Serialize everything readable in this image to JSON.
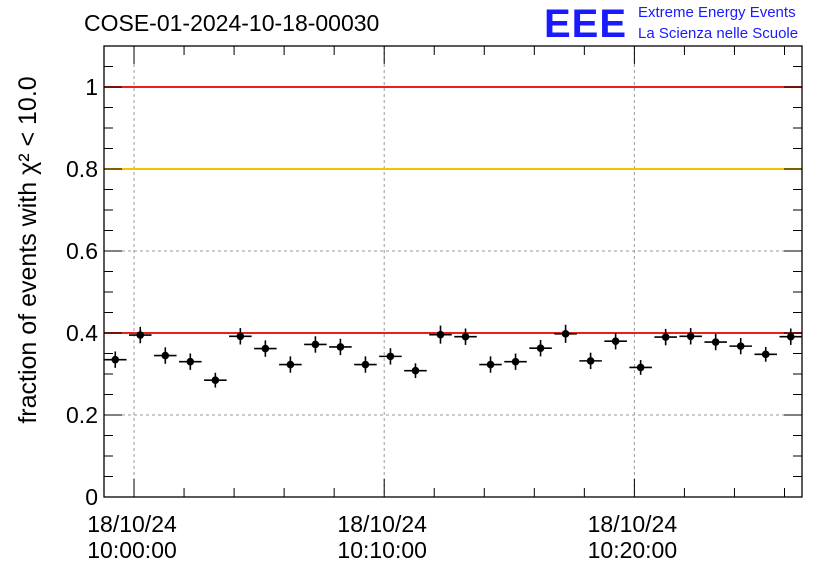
{
  "header": {
    "run_title": "COSE-01-2024-10-18-00030",
    "logo_text": "EEE",
    "logo_line1": "Extreme Energy Events",
    "logo_line2": "La Scienza nelle Scuole"
  },
  "chart_data": {
    "type": "scatter",
    "title": "COSE-01-2024-10-18-00030",
    "ylabel": "fraction of events with χ² < 10.0",
    "ylim": [
      0,
      1.1
    ],
    "yticks": [
      0,
      0.2,
      0.4,
      0.6,
      0.8,
      1
    ],
    "ytick_labels": [
      "0",
      "0.2",
      "0.4",
      "0.6",
      "0.8",
      "1"
    ],
    "xlim_minutes": [
      -1.2,
      26.7
    ],
    "xticks": [
      {
        "minute": 0,
        "date": "18/10/24",
        "time": "10:00:00"
      },
      {
        "minute": 10,
        "date": "18/10/24",
        "time": "10:10:00"
      },
      {
        "minute": 20,
        "date": "18/10/24",
        "time": "10:20:00"
      }
    ],
    "reference_lines": [
      {
        "y": 1.0,
        "color": "#e8211a"
      },
      {
        "y": 0.8,
        "color": "#f5c400"
      },
      {
        "y": 0.4,
        "color": "#e8211a"
      }
    ],
    "x_halfwidth_minutes": 0.45,
    "grid": true,
    "marker_color": "#000000",
    "points": [
      {
        "x": -0.75,
        "y": 0.335,
        "err": 0.02
      },
      {
        "x": 0.25,
        "y": 0.395,
        "err": 0.02
      },
      {
        "x": 1.25,
        "y": 0.345,
        "err": 0.02
      },
      {
        "x": 2.25,
        "y": 0.33,
        "err": 0.02
      },
      {
        "x": 3.25,
        "y": 0.285,
        "err": 0.018
      },
      {
        "x": 4.25,
        "y": 0.392,
        "err": 0.02
      },
      {
        "x": 5.25,
        "y": 0.362,
        "err": 0.02
      },
      {
        "x": 6.25,
        "y": 0.323,
        "err": 0.02
      },
      {
        "x": 7.25,
        "y": 0.372,
        "err": 0.02
      },
      {
        "x": 8.25,
        "y": 0.366,
        "err": 0.02
      },
      {
        "x": 9.25,
        "y": 0.323,
        "err": 0.02
      },
      {
        "x": 10.25,
        "y": 0.343,
        "err": 0.02
      },
      {
        "x": 11.25,
        "y": 0.308,
        "err": 0.018
      },
      {
        "x": 12.25,
        "y": 0.396,
        "err": 0.022
      },
      {
        "x": 13.25,
        "y": 0.391,
        "err": 0.02
      },
      {
        "x": 14.25,
        "y": 0.323,
        "err": 0.02
      },
      {
        "x": 15.25,
        "y": 0.33,
        "err": 0.02
      },
      {
        "x": 16.25,
        "y": 0.363,
        "err": 0.02
      },
      {
        "x": 17.25,
        "y": 0.398,
        "err": 0.022
      },
      {
        "x": 18.25,
        "y": 0.332,
        "err": 0.02
      },
      {
        "x": 19.25,
        "y": 0.38,
        "err": 0.02
      },
      {
        "x": 20.25,
        "y": 0.316,
        "err": 0.018
      },
      {
        "x": 21.25,
        "y": 0.39,
        "err": 0.02
      },
      {
        "x": 22.25,
        "y": 0.392,
        "err": 0.02
      },
      {
        "x": 23.25,
        "y": 0.378,
        "err": 0.02
      },
      {
        "x": 24.25,
        "y": 0.368,
        "err": 0.02
      },
      {
        "x": 25.25,
        "y": 0.348,
        "err": 0.018
      },
      {
        "x": 26.25,
        "y": 0.391,
        "err": 0.02
      }
    ]
  }
}
